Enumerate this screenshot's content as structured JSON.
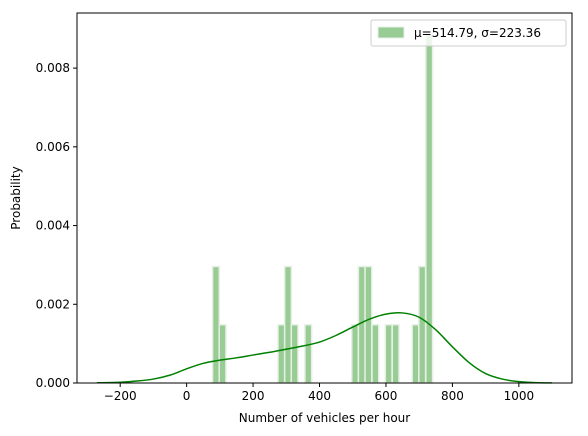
{
  "chart_data": {
    "type": "bar",
    "xlabel": "Number of vehicles per hour",
    "ylabel": "Probability",
    "xlim": [
      -330,
      1160
    ],
    "ylim": [
      0,
      0.0094
    ],
    "x_ticks": [
      -200,
      0,
      200,
      400,
      600,
      800,
      1000
    ],
    "y_ticks": [
      0.0,
      0.002,
      0.004,
      0.006,
      0.008
    ],
    "y_tick_labels": [
      "0.000",
      "0.002",
      "0.004",
      "0.006",
      "0.008"
    ],
    "bin_width": 20.3,
    "bins": [
      {
        "x0": 78,
        "height": 0.00296
      },
      {
        "x0": 98,
        "height": 0.00148
      },
      {
        "x0": 275,
        "height": 0.00148
      },
      {
        "x0": 295,
        "height": 0.00296
      },
      {
        "x0": 315,
        "height": 0.00148
      },
      {
        "x0": 356,
        "height": 0.00148
      },
      {
        "x0": 497,
        "height": 0.00148
      },
      {
        "x0": 517,
        "height": 0.00296
      },
      {
        "x0": 537,
        "height": 0.00296
      },
      {
        "x0": 558,
        "height": 0.00148
      },
      {
        "x0": 598,
        "height": 0.00148
      },
      {
        "x0": 619,
        "height": 0.00148
      },
      {
        "x0": 679,
        "height": 0.00148
      },
      {
        "x0": 699,
        "height": 0.00296
      },
      {
        "x0": 720,
        "height": 0.00888
      }
    ],
    "kde": {
      "x": [
        -270,
        -200,
        -150,
        -100,
        -50,
        0,
        50,
        100,
        150,
        200,
        250,
        300,
        350,
        400,
        450,
        500,
        550,
        600,
        650,
        700,
        750,
        800,
        850,
        900,
        950,
        1000,
        1050,
        1100
      ],
      "y": [
        5e-06,
        2e-05,
        5e-05,
        0.0001,
        0.0002,
        0.00036,
        0.0005,
        0.00058,
        0.00064,
        0.00071,
        0.00078,
        0.00086,
        0.00094,
        0.00104,
        0.00121,
        0.00142,
        0.00162,
        0.00175,
        0.00178,
        0.00167,
        0.00135,
        0.00092,
        0.00052,
        0.00024,
        0.0001,
        3.5e-05,
        1e-05,
        3e-06
      ]
    },
    "legend": {
      "placement": "top-right",
      "entries": [
        "μ=514.79, σ=223.36"
      ]
    },
    "colors": {
      "bar_fill": "#99cc95",
      "bar_edge": "#e6f0e5",
      "kde_line": "#008000"
    },
    "grid": false
  }
}
